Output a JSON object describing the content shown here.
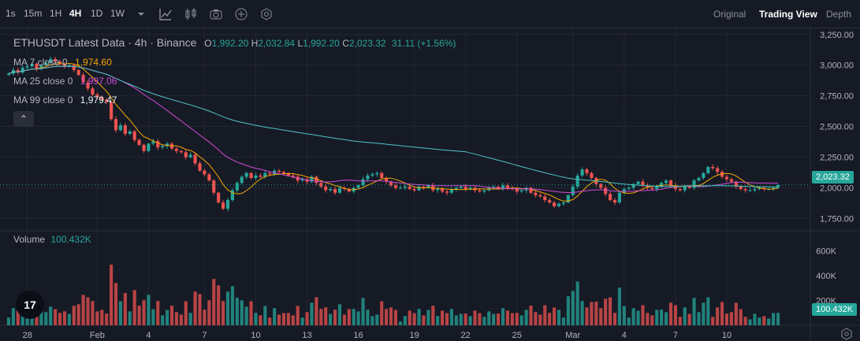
{
  "toolbar": {
    "intervals": [
      "1s",
      "15m",
      "1H",
      "4H",
      "1D",
      "1W"
    ],
    "active_interval": "4H",
    "views": [
      "Original",
      "Trading View",
      "Depth"
    ],
    "active_view": "Trading View",
    "icons": [
      "chevron-down-icon",
      "indicators-icon",
      "candle-type-icon",
      "camera-icon",
      "plus-circle-icon",
      "settings-hex-icon"
    ]
  },
  "legend": {
    "title": "ETHUSDT Latest Data · 4h · Binance",
    "o_label": "O",
    "o": "1,992.20",
    "h_label": "H",
    "h": "2,032.84",
    "l_label": "L",
    "l": "1,992.20",
    "c_label": "C",
    "c": "2,023.32",
    "change": "31.11 (+1.56%)",
    "ma7_label": "MA 7 close 0",
    "ma7_value": "1,974.60",
    "ma25_label": "MA 25 close 0",
    "ma25_value": "1,997.06",
    "ma99_label": "MA 99 close 0",
    "ma99_value": "1,979.47",
    "collapse_glyph": "⌃"
  },
  "volume_legend": {
    "label": "Volume",
    "value": "100.432K"
  },
  "price_tag": "2,023.32",
  "volume_tag": "100.432K",
  "logo_text": "17",
  "colors": {
    "up": "#26a69a",
    "down": "#ef5350",
    "ma7": "#f7a600",
    "ma25": "#d04bd8",
    "ma99": "#4cc4c4",
    "bg": "#161a25",
    "grid": "#232733"
  },
  "chart_data": {
    "type": "candlestick",
    "title": "ETHUSDT Latest Data · 4h · Binance",
    "price_axis_ticks": [
      "3,250.00",
      "3,000.00",
      "2,750.00",
      "2,500.00",
      "2,250.00",
      "2,000.00",
      "1,750.00"
    ],
    "price_axis_values": [
      3250,
      3000,
      2750,
      2500,
      2250,
      2000,
      1750
    ],
    "volume_axis_ticks": [
      "600K",
      "400K",
      "200K"
    ],
    "volume_axis_values": [
      600,
      400,
      200
    ],
    "x_ticks": [
      "28",
      "Feb",
      "4",
      "7",
      "10",
      "13",
      "16",
      "19",
      "22",
      "25",
      "Mar",
      "4",
      "7",
      "10"
    ],
    "x_tick_index": [
      4,
      19,
      30,
      42,
      53,
      64,
      75,
      87,
      98,
      109,
      121,
      132,
      143,
      154
    ],
    "price_ylim": [
      1650,
      3300
    ],
    "volume_ylim": [
      0,
      700
    ],
    "close": [
      2930,
      2960,
      2940,
      2980,
      2990,
      3010,
      2970,
      3000,
      3020,
      3050,
      3030,
      3010,
      2990,
      3000,
      2960,
      2920,
      2860,
      2810,
      2760,
      2740,
      2720,
      2700,
      2560,
      2470,
      2510,
      2440,
      2460,
      2390,
      2350,
      2300,
      2360,
      2380,
      2330,
      2340,
      2360,
      2320,
      2300,
      2290,
      2250,
      2270,
      2200,
      2140,
      2110,
      2060,
      1960,
      1880,
      1830,
      1900,
      1980,
      2040,
      2090,
      2120,
      2080,
      2100,
      2090,
      2120,
      2110,
      2140,
      2130,
      2120,
      2100,
      2090,
      2060,
      2070,
      2050,
      2090,
      2040,
      2010,
      1980,
      1990,
      1960,
      2000,
      1990,
      1970,
      2000,
      2020,
      2070,
      2100,
      2110,
      2120,
      2080,
      2050,
      2020,
      2000,
      2000,
      2010,
      1990,
      1980,
      2010,
      2000,
      2020,
      1980,
      1990,
      1970,
      1960,
      1990,
      2000,
      2010,
      1990,
      2000,
      1980,
      1970,
      1980,
      2000,
      2010,
      1990,
      2020,
      2000,
      1990,
      1970,
      1980,
      2000,
      1960,
      1940,
      1930,
      1900,
      1880,
      1850,
      1870,
      1880,
      1940,
      2010,
      2100,
      2150,
      2120,
      2080,
      2030,
      2000,
      1950,
      1900,
      1880,
      1960,
      1990,
      2000,
      2030,
      2050,
      2020,
      2000,
      1990,
      2010,
      2040,
      2060,
      2020,
      1990,
      1980,
      2010,
      2000,
      2060,
      2080,
      2120,
      2170,
      2160,
      2130,
      2090,
      2070,
      2050,
      2010,
      1990,
      1980,
      1980,
      1990,
      2000,
      1990,
      1990,
      2000,
      2023
    ]
  }
}
